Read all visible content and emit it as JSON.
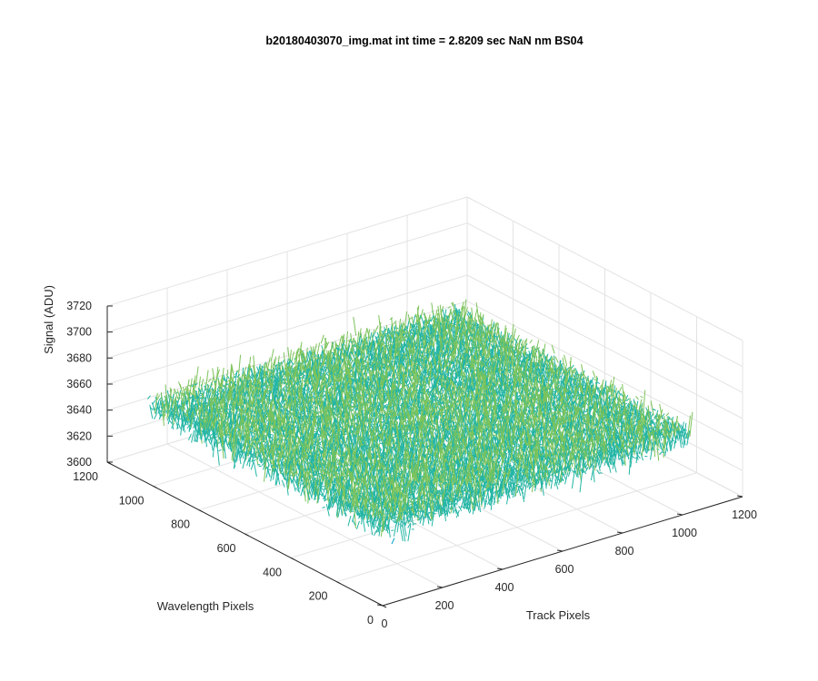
{
  "chart_data": {
    "type": "surface",
    "title": "b20180403070_img.mat int time = 2.8209 sec  NaN nm BS04",
    "xlabel": "Track Pixels",
    "ylabel": "Wavelength Pixels",
    "zlabel": "Signal (ADU)",
    "x_ticks": [
      "0",
      "200",
      "400",
      "600",
      "800",
      "1000",
      "1200"
    ],
    "y_ticks": [
      "0",
      "200",
      "400",
      "600",
      "800",
      "1000",
      "1200"
    ],
    "z_ticks": [
      "3600",
      "3620",
      "3640",
      "3660",
      "3680",
      "3700",
      "3720"
    ],
    "xlim": [
      0,
      1200
    ],
    "ylim": [
      0,
      1200
    ],
    "zlim": [
      3600,
      3720
    ],
    "data_extent": {
      "x": [
        0,
        1024
      ],
      "y": [
        0,
        1024
      ]
    },
    "signal_mean": 3660,
    "signal_range": [
      3620,
      3705
    ],
    "grid": true,
    "colormap": [
      "#0072bd",
      "#00a0c8",
      "#22b5a5",
      "#7cc35a",
      "#d8bd2e"
    ]
  }
}
